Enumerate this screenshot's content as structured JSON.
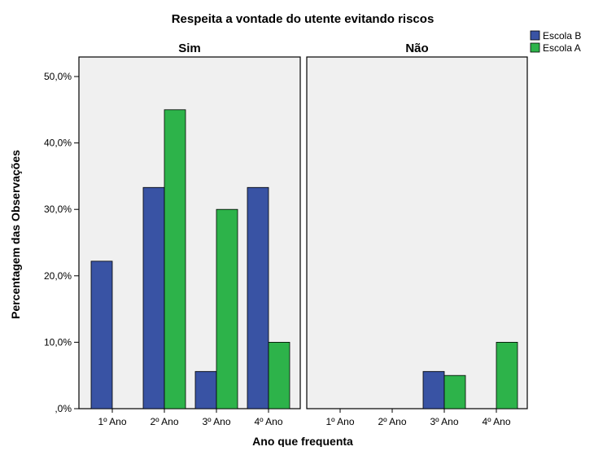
{
  "chart_data": {
    "type": "bar",
    "title": "Respeita a vontade do utente evitando riscos",
    "xlabel": "Ano que frequenta",
    "ylabel": "Percentagem das Observações",
    "ylim": [
      0,
      50
    ],
    "y_ticks": [
      0,
      10,
      20,
      30,
      40,
      50
    ],
    "y_tick_labels": [
      ",0%",
      "10,0%",
      "20,0%",
      "30,0%",
      "40,0%",
      "50,0%"
    ],
    "categories": [
      "1º Ano",
      "2º Ano",
      "3º Ano",
      "4º Ano"
    ],
    "legend_position": "top-right",
    "series_colors": {
      "Escola B": "#3953a4",
      "Escola A": "#2db34a"
    },
    "panels": [
      {
        "name": "Sim",
        "series": [
          {
            "name": "Escola B",
            "values": [
              22.2,
              33.3,
              5.6,
              33.3
            ]
          },
          {
            "name": "Escola A",
            "values": [
              0,
              45,
              30,
              10
            ]
          }
        ]
      },
      {
        "name": "Não",
        "series": [
          {
            "name": "Escola B",
            "values": [
              0,
              0,
              5.6,
              0
            ]
          },
          {
            "name": "Escola A",
            "values": [
              0,
              0,
              5,
              10
            ]
          }
        ]
      }
    ],
    "legend": [
      "Escola B",
      "Escola A"
    ]
  }
}
